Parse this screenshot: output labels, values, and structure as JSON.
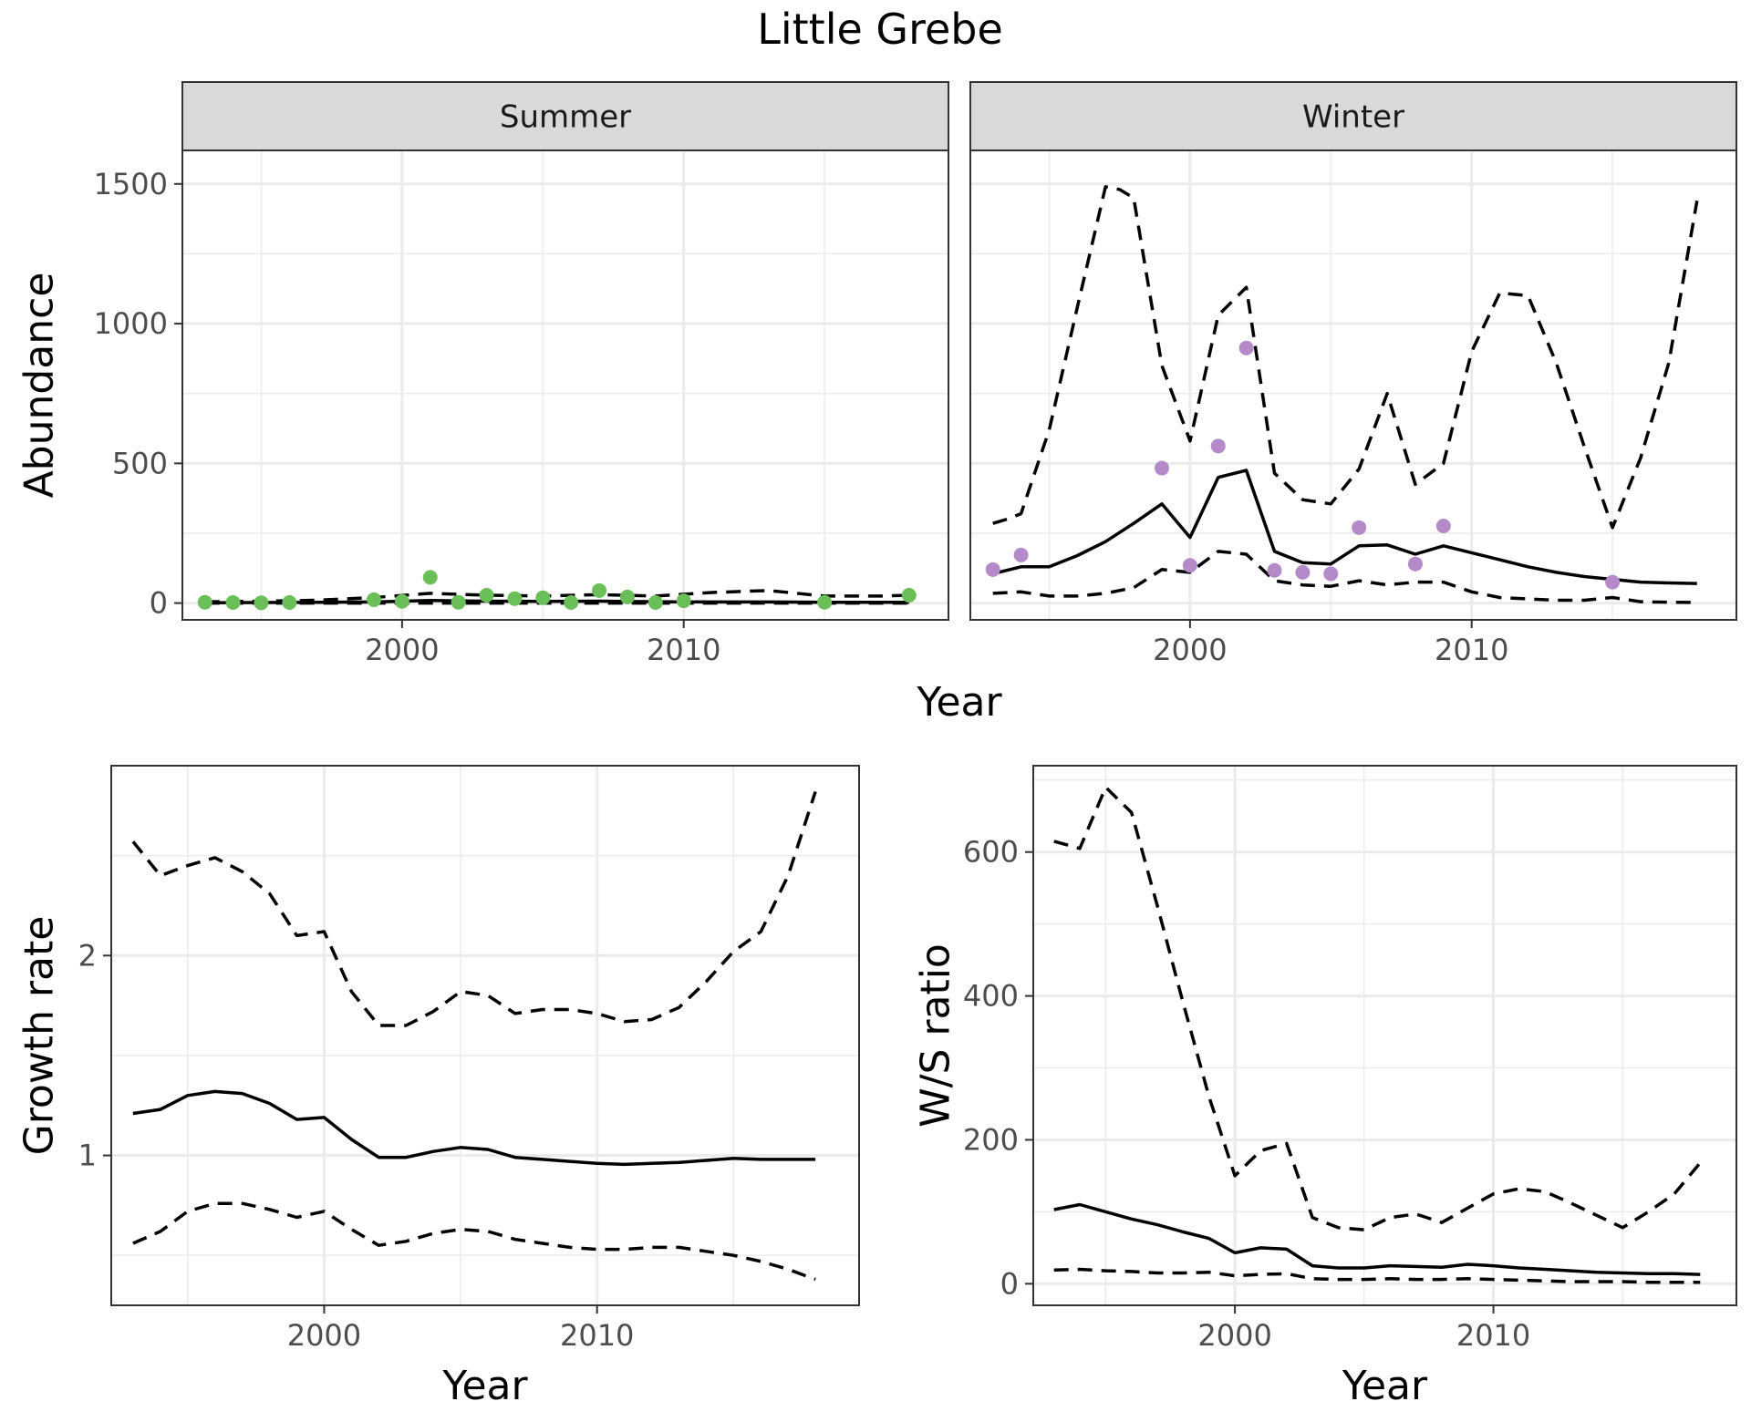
{
  "figure": {
    "title": "Little Grebe",
    "colors": {
      "summer_points": "#6abf59",
      "winter_points": "#b48ac8",
      "lines": "#000000",
      "strip": "#d9d9d9"
    }
  },
  "chart_data": [
    {
      "id": "abundance-facets",
      "type": "line",
      "xlabel": "Year",
      "ylabel": "Abundance",
      "xlim": [
        1992.2,
        2019.4
      ],
      "ylim": [
        -60,
        1620
      ],
      "x_ticks": [
        2000,
        2010
      ],
      "x_tick_labels": [
        "2000",
        "2010"
      ],
      "y_ticks": [
        0,
        500,
        1000,
        1500
      ],
      "y_tick_labels": [
        "0",
        "500",
        "1000",
        "1500"
      ],
      "grid": true,
      "facets": [
        {
          "strip": "Summer",
          "points": {
            "color": "#6abf59",
            "x": [
              1993,
              1994,
              1995,
              1996,
              1999,
              2000,
              2001,
              2002,
              2003,
              2004,
              2005,
              2006,
              2007,
              2008,
              2009,
              2010,
              2015,
              2018
            ],
            "y": [
              3,
              2,
              1,
              2,
              12,
              6,
              92,
              3,
              28,
              16,
              19,
              2,
              45,
              22,
              2,
              8,
              3,
              28
            ]
          },
          "lines": [
            {
              "style": "solid",
              "x": [
                1993,
                1995,
                1997,
                1999,
                2001,
                2003,
                2005,
                2007,
                2009,
                2011,
                2013,
                2015,
                2017,
                2018
              ],
              "y": [
                1,
                2,
                3,
                4,
                9,
                7,
                6,
                7,
                5,
                4,
                4,
                3,
                3,
                3
              ]
            },
            {
              "style": "dashed",
              "x": [
                1993,
                1995,
                1997,
                1999,
                2001,
                2003,
                2005,
                2007,
                2009,
                2011,
                2013,
                2015,
                2017,
                2018
              ],
              "y": [
                5,
                7,
                10,
                20,
                35,
                28,
                25,
                30,
                25,
                38,
                45,
                25,
                25,
                28
              ]
            },
            {
              "style": "dashed",
              "x": [
                1993,
                2000,
                2010,
                2018
              ],
              "y": [
                0,
                0,
                0,
                0
              ]
            }
          ]
        },
        {
          "strip": "Winter",
          "points": {
            "color": "#b48ac8",
            "x": [
              1993,
              1994,
              1999,
              2000,
              2001,
              2002,
              2003,
              2004,
              2005,
              2006,
              2008,
              2009,
              2015
            ],
            "y": [
              120,
              172,
              483,
              135,
              562,
              913,
              117,
              110,
              105,
              270,
              140,
              276,
              75
            ]
          },
          "lines": [
            {
              "style": "solid",
              "x": [
                1993,
                1994,
                1995,
                1996,
                1997,
                1998,
                1999,
                2000,
                2001,
                2002,
                2003,
                2004,
                2005,
                2006,
                2007,
                2008,
                2009,
                2010,
                2011,
                2012,
                2013,
                2014,
                2015,
                2016,
                2017,
                2018
              ],
              "y": [
                105,
                130,
                130,
                170,
                220,
                285,
                355,
                235,
                450,
                475,
                185,
                145,
                140,
                205,
                208,
                175,
                205,
                180,
                155,
                130,
                110,
                95,
                85,
                75,
                72,
                70
              ]
            },
            {
              "style": "dashed",
              "x": [
                1993,
                1993.5,
                1994,
                1995,
                1996,
                1997,
                1997.5,
                1998,
                1999,
                2000,
                2001,
                2002,
                2003,
                2004,
                2005,
                2006,
                2007,
                2008,
                2009,
                2010,
                2011,
                2012,
                2013,
                2014,
                2015,
                2016,
                2017,
                2018
              ],
              "y": [
                285,
                300,
                320,
                620,
                1060,
                1490,
                1480,
                1450,
                850,
                580,
                1030,
                1130,
                465,
                370,
                355,
                480,
                750,
                425,
                500,
                900,
                1110,
                1100,
                860,
                560,
                270,
                520,
                860,
                1440
              ]
            },
            {
              "style": "dashed",
              "x": [
                1993,
                1994,
                1995,
                1996,
                1997,
                1998,
                1999,
                2000,
                2001,
                2002,
                2003,
                2004,
                2005,
                2006,
                2007,
                2008,
                2009,
                2010,
                2011,
                2012,
                2013,
                2014,
                2015,
                2016,
                2017,
                2018
              ],
              "y": [
                35,
                40,
                25,
                25,
                35,
                55,
                120,
                110,
                185,
                175,
                80,
                65,
                60,
                80,
                65,
                75,
                75,
                40,
                20,
                15,
                10,
                10,
                20,
                5,
                3,
                2
              ]
            }
          ]
        }
      ]
    },
    {
      "id": "growth-rate",
      "type": "line",
      "xlabel": "Year",
      "ylabel": "Growth rate",
      "xlim": [
        1992.2,
        2019.6
      ],
      "ylim": [
        0.25,
        2.95
      ],
      "x_ticks": [
        2000,
        2010
      ],
      "x_tick_labels": [
        "2000",
        "2010"
      ],
      "y_ticks": [
        1,
        2
      ],
      "y_tick_labels": [
        "1",
        "2"
      ],
      "grid": true,
      "lines": [
        {
          "style": "solid",
          "x": [
            1993,
            1994,
            1995,
            1996,
            1997,
            1998,
            1999,
            2000,
            2001,
            2002,
            2003,
            2004,
            2005,
            2006,
            2007,
            2008,
            2009,
            2010,
            2011,
            2012,
            2013,
            2014,
            2015,
            2016,
            2017,
            2018
          ],
          "y": [
            1.21,
            1.23,
            1.3,
            1.32,
            1.31,
            1.26,
            1.18,
            1.19,
            1.08,
            0.99,
            0.99,
            1.02,
            1.04,
            1.03,
            0.99,
            0.98,
            0.97,
            0.96,
            0.955,
            0.96,
            0.965,
            0.975,
            0.985,
            0.98,
            0.98,
            0.98
          ]
        },
        {
          "style": "dashed",
          "x": [
            1993,
            1994,
            1995,
            1996,
            1997,
            1998,
            1999,
            2000,
            2001,
            2002,
            2003,
            2004,
            2005,
            2006,
            2007,
            2008,
            2009,
            2010,
            2011,
            2012,
            2013,
            2014,
            2015,
            2016,
            2017,
            2018
          ],
          "y": [
            2.57,
            2.4,
            2.45,
            2.49,
            2.42,
            2.31,
            2.1,
            2.12,
            1.82,
            1.65,
            1.65,
            1.72,
            1.82,
            1.8,
            1.71,
            1.73,
            1.73,
            1.71,
            1.67,
            1.68,
            1.74,
            1.87,
            2.02,
            2.12,
            2.4,
            2.82
          ]
        },
        {
          "style": "dashed",
          "x": [
            1993,
            1994,
            1995,
            1996,
            1997,
            1998,
            1999,
            2000,
            2001,
            2002,
            2003,
            2004,
            2005,
            2006,
            2007,
            2008,
            2009,
            2010,
            2011,
            2012,
            2013,
            2014,
            2015,
            2016,
            2017,
            2018
          ],
          "y": [
            0.56,
            0.62,
            0.72,
            0.76,
            0.76,
            0.73,
            0.69,
            0.72,
            0.63,
            0.55,
            0.57,
            0.61,
            0.63,
            0.62,
            0.58,
            0.56,
            0.54,
            0.53,
            0.53,
            0.54,
            0.54,
            0.52,
            0.5,
            0.47,
            0.43,
            0.38
          ]
        }
      ]
    },
    {
      "id": "ws-ratio",
      "type": "line",
      "xlabel": "Year",
      "ylabel": "W/S ratio",
      "xlim": [
        1992.2,
        2019.4
      ],
      "ylim": [
        -30,
        720
      ],
      "x_ticks": [
        2000,
        2010
      ],
      "x_tick_labels": [
        "2000",
        "2010"
      ],
      "y_ticks": [
        0,
        200,
        400,
        600
      ],
      "y_tick_labels": [
        "0",
        "200",
        "400",
        "600"
      ],
      "grid": true,
      "lines": [
        {
          "style": "solid",
          "x": [
            1993,
            1994,
            1995,
            1996,
            1997,
            1998,
            1999,
            2000,
            2001,
            2002,
            2003,
            2004,
            2005,
            2006,
            2007,
            2008,
            2009,
            2010,
            2011,
            2012,
            2013,
            2014,
            2015,
            2016,
            2017,
            2018
          ],
          "y": [
            103,
            110,
            100,
            90,
            82,
            72,
            63,
            43,
            50,
            48,
            25,
            22,
            22,
            25,
            24,
            23,
            27,
            25,
            22,
            20,
            18,
            16,
            15,
            14,
            14,
            13
          ]
        },
        {
          "style": "dashed",
          "x": [
            1993,
            1994,
            1995,
            1996,
            1997,
            1998,
            1999,
            2000,
            2001,
            2002,
            2003,
            2004,
            2005,
            2006,
            2007,
            2008,
            2009,
            2010,
            2011,
            2012,
            2013,
            2014,
            2015,
            2016,
            2017,
            2018
          ],
          "y": [
            615,
            605,
            690,
            655,
            525,
            390,
            260,
            150,
            185,
            195,
            92,
            78,
            75,
            92,
            97,
            85,
            105,
            125,
            132,
            128,
            112,
            95,
            78,
            100,
            125,
            168
          ]
        },
        {
          "style": "dashed",
          "x": [
            1993,
            1994,
            1995,
            1996,
            1997,
            1998,
            1999,
            2000,
            2001,
            2002,
            2003,
            2004,
            2005,
            2006,
            2007,
            2008,
            2009,
            2010,
            2011,
            2012,
            2013,
            2014,
            2015,
            2016,
            2017,
            2018
          ],
          "y": [
            19,
            20,
            18,
            17,
            15,
            15,
            16,
            11,
            13,
            14,
            7,
            6,
            6,
            7,
            6,
            6,
            7,
            6,
            5,
            4,
            3,
            3,
            3,
            2,
            2,
            2
          ]
        }
      ]
    }
  ]
}
